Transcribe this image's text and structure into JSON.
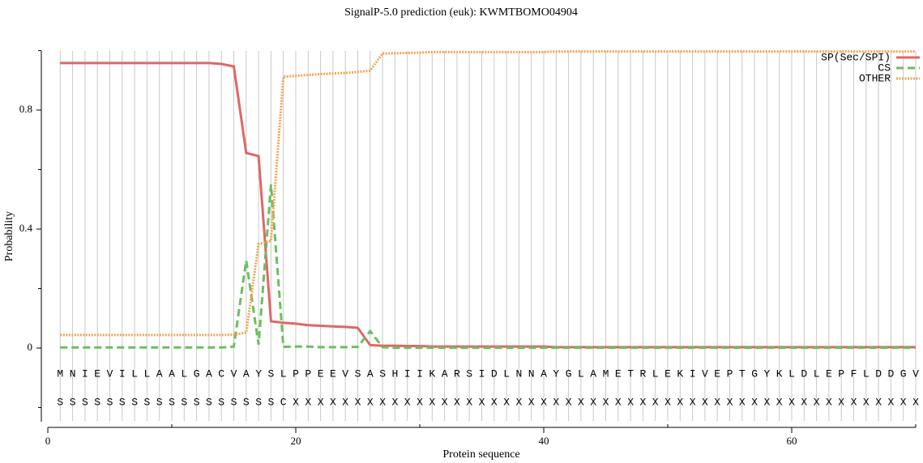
{
  "chart_data": {
    "type": "line",
    "title": "SignalP-5.0 prediction (euk):  KWMTBOMO04904",
    "x_label": "Protein sequence",
    "y_label": "Probability",
    "xlim": [
      0,
      70
    ],
    "xticks": [
      0,
      20,
      40,
      60
    ],
    "xminorticks": [
      10,
      30,
      50,
      70
    ],
    "ylim": [
      -0.25,
      1
    ],
    "yticks": [
      0,
      0.4,
      0.8
    ],
    "yminorticks": [
      -0.2,
      0.2,
      0.6,
      1.0
    ],
    "grid": true,
    "legend": "upper right",
    "x": [
      1,
      2,
      3,
      4,
      5,
      6,
      7,
      8,
      9,
      10,
      11,
      12,
      13,
      14,
      15,
      16,
      17,
      18,
      19,
      20,
      21,
      22,
      23,
      24,
      25,
      26,
      27,
      28,
      29,
      30,
      31,
      32,
      33,
      34,
      35,
      36,
      37,
      38,
      39,
      40,
      41,
      42,
      43,
      44,
      45,
      46,
      47,
      48,
      49,
      50,
      51,
      52,
      53,
      54,
      55,
      56,
      57,
      58,
      59,
      60,
      61,
      62,
      63,
      64,
      65,
      66,
      67,
      68,
      69,
      70
    ],
    "series": [
      {
        "name": "SP(Sec/SPI)",
        "color": "#e06666",
        "style": "solid",
        "values": [
          0.958,
          0.958,
          0.958,
          0.958,
          0.958,
          0.958,
          0.958,
          0.958,
          0.958,
          0.958,
          0.958,
          0.958,
          0.958,
          0.955,
          0.947,
          0.656,
          0.645,
          0.09,
          0.085,
          0.082,
          0.077,
          0.075,
          0.073,
          0.071,
          0.068,
          0.01,
          0.008,
          0.008,
          0.007,
          0.007,
          0.005,
          0.005,
          0.005,
          0.005,
          0.005,
          0.005,
          0.005,
          0.005,
          0.005,
          0.005,
          0.003,
          0.003,
          0.003,
          0.003,
          0.003,
          0.003,
          0.003,
          0.003,
          0.003,
          0.003,
          0.003,
          0.003,
          0.003,
          0.003,
          0.003,
          0.003,
          0.003,
          0.003,
          0.003,
          0.003,
          0.003,
          0.003,
          0.003,
          0.003,
          0.003,
          0.003,
          0.003,
          0.003,
          0.003,
          0.003
        ]
      },
      {
        "name": "CS",
        "color": "#6abf5e",
        "style": "dashed",
        "values": [
          0.002,
          0.002,
          0.002,
          0.002,
          0.002,
          0.002,
          0.002,
          0.002,
          0.002,
          0.002,
          0.002,
          0.002,
          0.002,
          0.002,
          0.005,
          0.294,
          0.012,
          0.55,
          0.004,
          0.005,
          0.005,
          0.003,
          0.003,
          0.003,
          0.004,
          0.057,
          0.003,
          0.001,
          0.001,
          0.001,
          0.001,
          0.001,
          0.001,
          0.001,
          0.001,
          0.001,
          0.001,
          0.001,
          0.001,
          0.001,
          0.001,
          0.001,
          0.001,
          0.001,
          0.001,
          0.001,
          0.001,
          0.001,
          0.001,
          0.001,
          0.001,
          0.001,
          0.001,
          0.001,
          0.001,
          0.001,
          0.001,
          0.001,
          0.001,
          0.001,
          0.001,
          0.001,
          0.001,
          0.001,
          0.001,
          0.001,
          0.001,
          0.001,
          0.001,
          0.001
        ]
      },
      {
        "name": "OTHER",
        "color": "#f4a352",
        "style": "dotted",
        "values": [
          0.044,
          0.044,
          0.044,
          0.044,
          0.044,
          0.044,
          0.044,
          0.044,
          0.044,
          0.044,
          0.044,
          0.044,
          0.044,
          0.044,
          0.045,
          0.052,
          0.35,
          0.36,
          0.912,
          0.915,
          0.918,
          0.921,
          0.923,
          0.925,
          0.928,
          0.933,
          0.99,
          0.991,
          0.992,
          0.993,
          0.995,
          0.995,
          0.995,
          0.995,
          0.995,
          0.995,
          0.995,
          0.995,
          0.995,
          0.995,
          0.997,
          0.997,
          0.997,
          0.997,
          0.997,
          0.997,
          0.997,
          0.997,
          0.997,
          0.997,
          0.997,
          0.997,
          0.997,
          0.997,
          0.997,
          0.997,
          0.997,
          0.997,
          0.997,
          0.997,
          0.997,
          0.997,
          0.997,
          0.997,
          0.997,
          0.997,
          0.997,
          0.997,
          0.997,
          0.997
        ]
      }
    ],
    "residues": [
      "M",
      "N",
      "I",
      "E",
      "V",
      "I",
      "L",
      "L",
      "A",
      "A",
      "L",
      "G",
      "A",
      "C",
      "V",
      "A",
      "Y",
      "S",
      "L",
      "P",
      "P",
      "E",
      "E",
      "V",
      "S",
      "A",
      "S",
      "H",
      "I",
      "I",
      "K",
      "A",
      "R",
      "S",
      "I",
      "D",
      "L",
      "N",
      "N",
      "A",
      "Y",
      "G",
      "L",
      "A",
      "M",
      "E",
      "T",
      "R",
      "L",
      "E",
      "K",
      "I",
      "V",
      "E",
      "P",
      "T",
      "G",
      "Y",
      "K",
      "L",
      "D",
      "L",
      "E",
      "P",
      "F",
      "L",
      "D",
      "D",
      "G",
      "V"
    ],
    "labels": [
      "S",
      "S",
      "S",
      "S",
      "S",
      "S",
      "S",
      "S",
      "S",
      "S",
      "S",
      "S",
      "S",
      "S",
      "S",
      "S",
      "S",
      "S",
      "C",
      "X",
      "X",
      "X",
      "X",
      "X",
      "X",
      "X",
      "X",
      "X",
      "X",
      "X",
      "X",
      "X",
      "X",
      "X",
      "X",
      "X",
      "X",
      "X",
      "X",
      "X",
      "X",
      "X",
      "X",
      "X",
      "X",
      "X",
      "X",
      "X",
      "X",
      "X",
      "X",
      "X",
      "X",
      "X",
      "X",
      "X",
      "X",
      "X",
      "X",
      "X",
      "X",
      "X",
      "X",
      "X",
      "X",
      "X",
      "X",
      "X",
      "X",
      "X"
    ]
  }
}
